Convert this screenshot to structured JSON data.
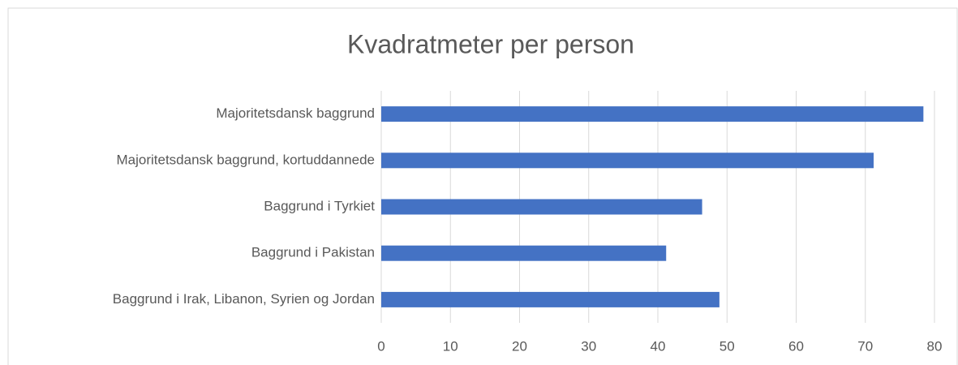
{
  "chart_data": {
    "type": "bar",
    "orientation": "horizontal",
    "title": "Kvadratmeter per person",
    "categories": [
      "Majoritetsdansk baggrund",
      "Majoritetsdansk baggrund, kortuddannede",
      "Baggrund i Tyrkiet",
      "Baggrund i Pakistan",
      "Baggrund i Irak, Libanon, Syrien og Jordan"
    ],
    "values": [
      78.4,
      71.2,
      46.4,
      41.2,
      48.9
    ],
    "color": "#4472c4",
    "xlim": [
      0,
      80
    ],
    "xticks": [
      0,
      10,
      20,
      30,
      40,
      50,
      60,
      70,
      80
    ],
    "grid": true
  }
}
